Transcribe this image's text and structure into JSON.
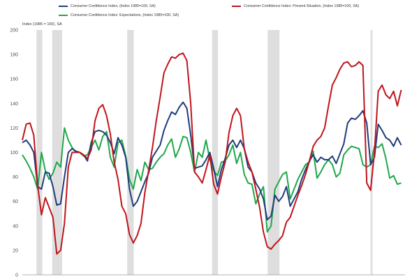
{
  "chart_data": {
    "type": "line",
    "title": "",
    "ylabel": "Index (1985 = 100), SA",
    "xlabel": "",
    "ylim": [
      0,
      200
    ],
    "x_range": [
      0,
      100
    ],
    "y_ticks": [
      "0",
      "20",
      "40",
      "60",
      "80",
      "100",
      "120",
      "140",
      "160",
      "180",
      "200"
    ],
    "grid": false,
    "legend": "top",
    "recessions": [
      [
        3.7,
        5.2
      ],
      [
        7.8,
        10.4
      ],
      [
        27.4,
        29.1
      ],
      [
        49.6,
        51.1
      ],
      [
        64.1,
        67.2
      ],
      [
        91.0,
        91.5
      ]
    ],
    "series": [
      {
        "name": "Consumer Confidence Index, (Index 1985=100, SA)",
        "color": "#1f3d7a",
        "x": [
          0,
          1,
          2,
          3,
          4,
          5,
          6,
          7,
          8,
          9,
          10,
          11,
          12,
          13,
          14,
          15,
          16,
          17,
          18,
          19,
          20,
          21,
          22,
          23,
          24,
          25,
          26,
          27,
          28,
          29,
          30,
          31,
          32,
          33,
          34,
          35,
          36,
          37,
          38,
          39,
          40,
          41,
          42,
          43,
          44,
          45,
          46,
          47,
          48,
          49,
          50,
          51,
          52,
          53,
          54,
          55,
          56,
          57,
          58,
          59,
          60,
          61,
          62,
          63,
          64,
          65,
          66,
          67,
          68,
          69,
          70,
          71,
          72,
          73,
          74,
          75,
          76,
          77,
          78,
          79,
          80,
          81,
          82,
          83,
          84,
          85,
          86,
          87,
          88,
          89,
          90,
          91,
          92,
          93,
          94,
          95,
          96,
          97,
          98,
          99
        ],
        "values": [
          108,
          110,
          106,
          100,
          72,
          70,
          84,
          83,
          72,
          57,
          58,
          80,
          100,
          103,
          101,
          100,
          98,
          93,
          108,
          117,
          118,
          117,
          114,
          108,
          99,
          112,
          106,
          96,
          70,
          56,
          60,
          68,
          76,
          83,
          96,
          101,
          106,
          118,
          126,
          133,
          131,
          137,
          141,
          136,
          114,
          87,
          88,
          89,
          94,
          100,
          87,
          72,
          86,
          95,
          106,
          110,
          104,
          110,
          103,
          88,
          84,
          75,
          70,
          62,
          45,
          48,
          65,
          60,
          64,
          72,
          56,
          62,
          68,
          78,
          86,
          93,
          98,
          92,
          96,
          94,
          94,
          97,
          91,
          99,
          107,
          124,
          128,
          127,
          130,
          134,
          124,
          90,
          96,
          123,
          118,
          112,
          110,
          105,
          112,
          106
        ]
      },
      {
        "name": "Consumer Confidence Index: Present Situation, (Index 1985=100, SA)",
        "color": "#c0141c",
        "x": [
          0,
          1,
          2,
          3,
          4,
          5,
          6,
          7,
          8,
          9,
          10,
          11,
          12,
          13,
          14,
          15,
          16,
          17,
          18,
          19,
          20,
          21,
          22,
          23,
          24,
          25,
          26,
          27,
          28,
          29,
          30,
          31,
          32,
          33,
          34,
          35,
          36,
          37,
          38,
          39,
          40,
          41,
          42,
          43,
          44,
          45,
          46,
          47,
          48,
          49,
          50,
          51,
          52,
          53,
          54,
          55,
          56,
          57,
          58,
          59,
          60,
          61,
          62,
          63,
          64,
          65,
          66,
          67,
          68,
          69,
          70,
          71,
          72,
          73,
          74,
          75,
          76,
          77,
          78,
          79,
          80,
          81,
          82,
          83,
          84,
          85,
          86,
          87,
          88,
          89,
          90,
          91,
          92,
          93,
          94,
          95,
          96,
          97,
          98,
          99
        ],
        "values": [
          110,
          123,
          124,
          114,
          73,
          49,
          63,
          55,
          47,
          17,
          20,
          42,
          88,
          100,
          100,
          100,
          98,
          95,
          102,
          126,
          136,
          139,
          130,
          115,
          92,
          78,
          56,
          50,
          33,
          26,
          32,
          42,
          67,
          85,
          104,
          126,
          145,
          165,
          172,
          178,
          177,
          180,
          181,
          175,
          140,
          84,
          80,
          75,
          86,
          98,
          74,
          66,
          80,
          92,
          116,
          130,
          136,
          130,
          103,
          92,
          84,
          70,
          55,
          35,
          23,
          21,
          25,
          28,
          32,
          43,
          47,
          56,
          65,
          73,
          82,
          93,
          105,
          110,
          113,
          120,
          138,
          155,
          161,
          168,
          173,
          174,
          170,
          171,
          174,
          171,
          75,
          69,
          100,
          150,
          155,
          147,
          144,
          150,
          138,
          151
        ]
      },
      {
        "name": "Consumer Confidence Index: Expectations, (Index 1985=100, SA)",
        "color": "#1ea84a",
        "x": [
          0,
          1,
          2,
          3,
          4,
          5,
          6,
          7,
          8,
          9,
          10,
          11,
          12,
          13,
          14,
          15,
          16,
          17,
          18,
          19,
          20,
          21,
          22,
          23,
          24,
          25,
          26,
          27,
          28,
          29,
          30,
          31,
          32,
          33,
          34,
          35,
          36,
          37,
          38,
          39,
          40,
          41,
          42,
          43,
          44,
          45,
          46,
          47,
          48,
          49,
          50,
          51,
          52,
          53,
          54,
          55,
          56,
          57,
          58,
          59,
          60,
          61,
          62,
          63,
          64,
          65,
          66,
          67,
          68,
          69,
          70,
          71,
          72,
          73,
          74,
          75,
          76,
          77,
          78,
          79,
          80,
          81,
          82,
          83,
          84,
          85,
          86,
          87,
          88,
          89,
          90,
          91,
          92,
          93,
          94,
          95,
          96,
          97,
          98,
          99
        ],
        "values": [
          98,
          93,
          87,
          80,
          70,
          100,
          85,
          78,
          83,
          92,
          88,
          120,
          110,
          104,
          100,
          100,
          97,
          98,
          104,
          110,
          102,
          113,
          117,
          96,
          88,
          108,
          110,
          97,
          78,
          70,
          86,
          77,
          92,
          86,
          87,
          92,
          96,
          99,
          106,
          111,
          96,
          103,
          113,
          112,
          100,
          84,
          100,
          96,
          110,
          94,
          85,
          81,
          92,
          93,
          98,
          106,
          91,
          100,
          82,
          75,
          74,
          58,
          66,
          72,
          35,
          40,
          70,
          76,
          82,
          84,
          62,
          70,
          78,
          84,
          90,
          92,
          101,
          79,
          84,
          90,
          94,
          90,
          80,
          83,
          98,
          102,
          105,
          104,
          103,
          90,
          88,
          90,
          105,
          104,
          107,
          95,
          79,
          81,
          74,
          75
        ]
      }
    ]
  }
}
